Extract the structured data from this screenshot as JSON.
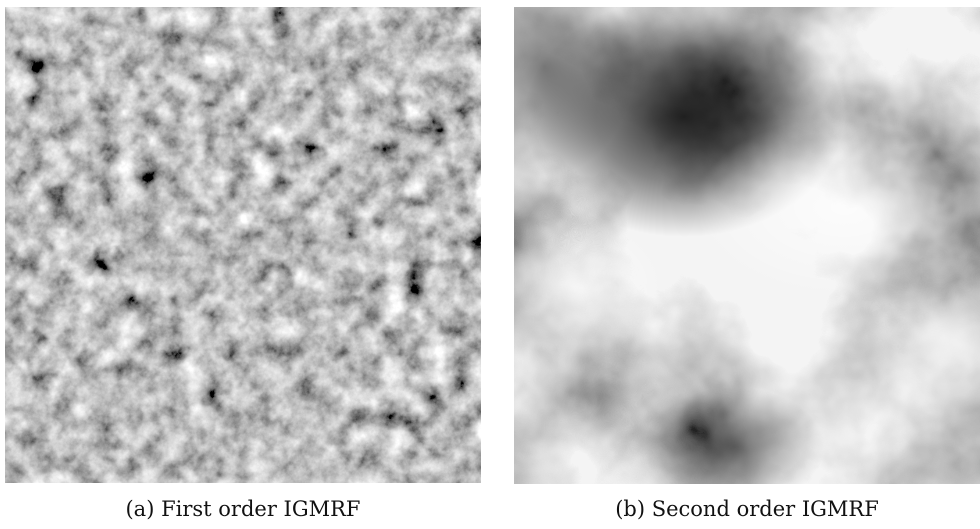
{
  "figure": {
    "panels": [
      {
        "id": "a",
        "caption": "(a) First order IGMRF",
        "texture": "fine-grained gray random field"
      },
      {
        "id": "b",
        "caption": "(b) Second order IGMRF",
        "texture": "smooth gray random field"
      }
    ],
    "colors": {
      "background": "#ffffff",
      "texture_mid": "#8a8a8a",
      "texture_dark": "#2a2a2a",
      "texture_light": "#f2f2f2"
    }
  }
}
